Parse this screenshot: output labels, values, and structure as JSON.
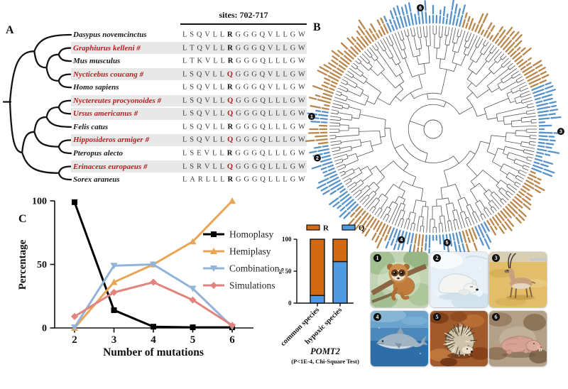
{
  "panel_labels": {
    "a": "A",
    "b": "B",
    "c": "C"
  },
  "alignment": {
    "sites_header": "sites: 702-717",
    "highlight_site_index": 6,
    "highlight_name_color": "#b22222",
    "row_band_color": "#e8e8e8",
    "species": [
      {
        "name": "Dasypus novemcinctus",
        "marked": false,
        "seq": "LSQVLLRGGGQVLLGW",
        "site_red": false
      },
      {
        "name": "Graphiurus kelleni #",
        "marked": true,
        "seq": "LTQVLLRGGGQVLLGW",
        "site_red": false
      },
      {
        "name": "Mus musculus",
        "marked": false,
        "seq": "LTKVLLRGGGQLLLGW",
        "site_red": false
      },
      {
        "name": "Nycticebus coucang #",
        "marked": true,
        "seq": "LSQVLLQGGGQVLLGW",
        "site_red": true
      },
      {
        "name": "Homo sapiens",
        "marked": false,
        "seq": "LSQVLLRGGGQVLLGW",
        "site_red": false
      },
      {
        "name": "Nyctereutes procyonoides #",
        "marked": true,
        "seq": "LSQVLLQGGGQLLLGW",
        "site_red": true
      },
      {
        "name": "Ursus americanus #",
        "marked": true,
        "seq": "LSQVLLQGGGQLLLGW",
        "site_red": true
      },
      {
        "name": "Felis catus",
        "marked": false,
        "seq": "LSQVLLRGGGQLLLGW",
        "site_red": false
      },
      {
        "name": "Hipposideros armiger #",
        "marked": true,
        "seq": "LSQVLLQGGGQLLLGW",
        "site_red": true
      },
      {
        "name": "Pteropus alecto",
        "marked": false,
        "seq": "LSEVLLRGGGQLLLGW",
        "site_red": false
      },
      {
        "name": "Erinaceus europaeus #",
        "marked": true,
        "seq": "LSRVLLQGGGQLLLGW",
        "site_red": true
      },
      {
        "name": "Sorex araneus",
        "marked": false,
        "seq": "LARLLLRGGGQLLLGW",
        "site_red": false
      }
    ],
    "tree_topology": [
      [
        0,
        [
          [
            1,
            2
          ],
          [
            3,
            4
          ]
        ]
      ],
      [
        [
          [
            [
              5,
              6
            ],
            7
          ],
          [
            8,
            9
          ]
        ],
        [
          10,
          11
        ]
      ]
    ]
  },
  "radial_tree": {
    "leaf_count": 200,
    "line_color": "#555555",
    "label_color_default": "#b9864c",
    "label_color_highlight": "#5793c9",
    "blue_ranges_deg": [
      [
        245,
        285
      ],
      [
        135,
        172
      ],
      [
        183,
        190
      ],
      [
        100,
        112
      ],
      [
        74,
        95
      ],
      [
        60,
        68
      ],
      [
        338,
        368
      ],
      [
        8,
        22
      ]
    ],
    "markers": [
      {
        "label": "1",
        "deg": 186,
        "r": 172
      },
      {
        "label": "2",
        "deg": 166,
        "r": 168
      },
      {
        "label": "3",
        "deg": 1,
        "r": 180
      },
      {
        "label": "4",
        "deg": 106,
        "r": 162
      },
      {
        "label": "5",
        "deg": 83,
        "r": 161
      },
      {
        "label": "6",
        "deg": 264,
        "r": 172
      }
    ]
  },
  "chart_data": [
    {
      "type": "line",
      "title": "",
      "x": [
        2,
        3,
        4,
        5,
        6
      ],
      "xlabel": "Number of mutations",
      "ylabel": "Percentage",
      "ylim": [
        0,
        100
      ],
      "yticks": [
        0,
        50,
        100
      ],
      "legend_position": "right-inside",
      "series": [
        {
          "name": "Homoplasy",
          "color": "#000000",
          "marker": "square",
          "values": [
            99,
            14,
            1,
            0.5,
            0.5
          ]
        },
        {
          "name": "Hemiplasy",
          "color": "#e9a556",
          "marker": "triangle-up",
          "values": [
            0,
            36,
            50,
            68,
            100
          ]
        },
        {
          "name": "Combination",
          "color": "#92b4d9",
          "marker": "triangle-down",
          "values": [
            0.5,
            49,
            50,
            31,
            1
          ]
        },
        {
          "name": "Simulations",
          "color": "#e2837f",
          "marker": "diamond",
          "values": [
            9,
            28,
            36,
            22,
            2
          ]
        }
      ]
    },
    {
      "type": "bar",
      "subtype": "stacked",
      "categories": [
        "common species",
        "hypoxic species"
      ],
      "series": [
        {
          "name": "Q",
          "color": "#4f9be0",
          "values": [
            12,
            65
          ]
        },
        {
          "name": "R",
          "color": "#d26a12",
          "values": [
            88,
            35
          ]
        }
      ],
      "legend_order": [
        "R",
        "Q"
      ],
      "ylabel": "%",
      "ylim": [
        0,
        100
      ],
      "yticks": [
        0,
        50,
        100
      ],
      "title": "POMT2",
      "subtitle": "(P<1E-4, Chi-Square Test)"
    }
  ],
  "animals": [
    {
      "number": "1",
      "icon": "slow-loris-illustration"
    },
    {
      "number": "2",
      "icon": "hibernating-bear-illustration"
    },
    {
      "number": "3",
      "icon": "tibetan-antelope-illustration"
    },
    {
      "number": "4",
      "icon": "dolphin-illustration"
    },
    {
      "number": "5",
      "icon": "hedgehog-illustration"
    },
    {
      "number": "6",
      "icon": "naked-mole-rat-illustration"
    }
  ]
}
